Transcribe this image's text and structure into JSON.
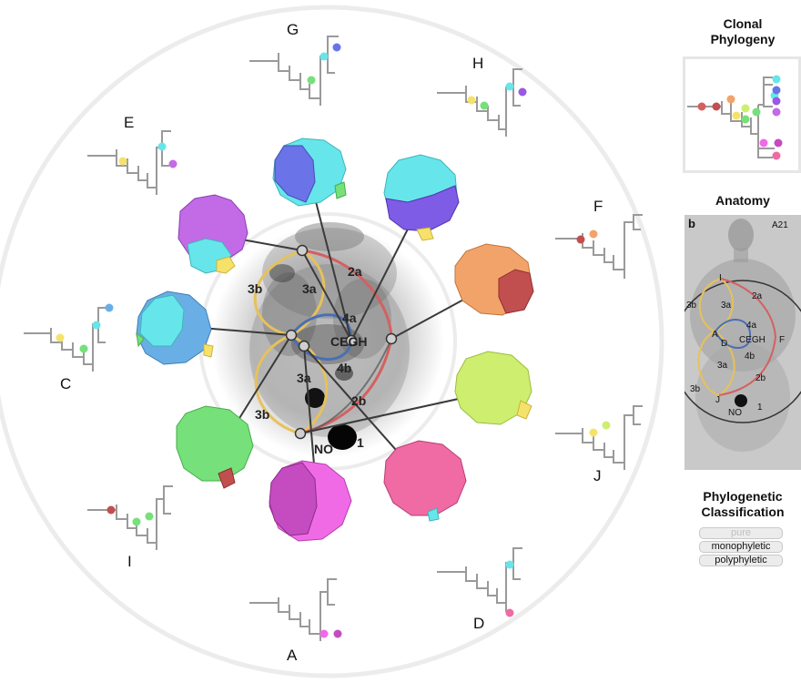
{
  "samples": [
    {
      "id": "G",
      "label": "G"
    },
    {
      "id": "H",
      "label": "H"
    },
    {
      "id": "E",
      "label": "E"
    },
    {
      "id": "F",
      "label": "F"
    },
    {
      "id": "C",
      "label": "C"
    },
    {
      "id": "J",
      "label": "J"
    },
    {
      "id": "I",
      "label": "I"
    },
    {
      "id": "D",
      "label": "D"
    },
    {
      "id": "A",
      "label": "A"
    }
  ],
  "regions": {
    "r2a": "2a",
    "r3b_top": "3b",
    "r3a_top": "3a",
    "r4a": "4a",
    "r4b": "4b",
    "r3a_bot": "3a",
    "r2b": "2b",
    "r3b_bot": "3b",
    "rNO": "NO",
    "r1": "1",
    "rCEGH": "CEGH"
  },
  "side": {
    "clonal_title_line1": "Clonal",
    "clonal_title_line2": "Phylogeny",
    "anatomy_title": "Anatomy",
    "anatomy_panel_letter": "b",
    "anatomy_patient": "A21",
    "classification_title_line1": "Phylogenetic",
    "classification_title_line2": "Classification",
    "buttons": {
      "pure": "pure",
      "monophyletic": "monophyletic",
      "polyphyletic": "polyphyletic"
    }
  },
  "anatomy_labels": {
    "I": "I",
    "r2a": "2a",
    "r3b": "3b",
    "r3a": "3a",
    "r4a": "4a",
    "A": "A",
    "D": "D",
    "CEGH": "CEGH",
    "F": "F",
    "r4b": "4b",
    "r3a2": "3a",
    "r2b": "2b",
    "r3b2": "3b",
    "J": "J",
    "NO": "NO",
    "r1": "1"
  },
  "colors": {
    "cyan": "#66e6ea",
    "blue": "#6a74e8",
    "purple": "#9a58e6",
    "violet": "#c36ae6",
    "orange": "#f2a36a",
    "darkred": "#c24f4f",
    "green": "#76e07a",
    "yellowgreen": "#cdee6e",
    "yellow": "#f6e26a",
    "pink": "#f06aa4",
    "magenta": "#c44cc0",
    "pinkmag": "#f06ae6",
    "skyblue": "#6aaee6",
    "tree": "#9a9a9a",
    "arc_yellow": "#e7c15a",
    "arc_red": "#d46060",
    "arc_blue": "#4a6fb5"
  }
}
